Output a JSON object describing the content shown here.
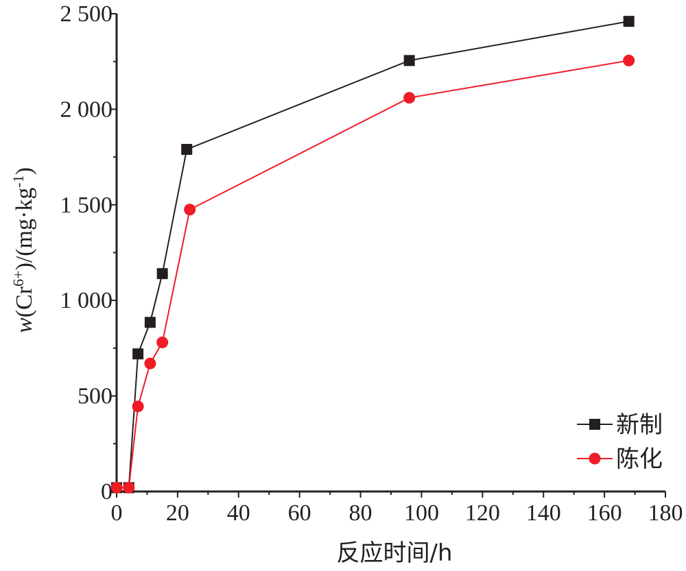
{
  "chart_data": {
    "type": "line",
    "xlabel": "反应时间/h",
    "ylabel": {
      "italic_var": "w",
      "open": "(Cr",
      "superscript": "6+",
      "middle": ")/(mg·kg",
      "superscript2": "-1",
      "close": ")"
    },
    "xlim": [
      0,
      180
    ],
    "ylim": [
      0,
      2500
    ],
    "x_ticks": [
      0,
      20,
      40,
      60,
      80,
      100,
      120,
      140,
      160,
      180
    ],
    "x_tick_labels": [
      "0",
      "20",
      "40",
      "60",
      "80",
      "100",
      "120",
      "140",
      "160",
      "180"
    ],
    "y_ticks": [
      0,
      500,
      1000,
      1500,
      2000,
      2500
    ],
    "y_tick_labels": [
      "0",
      "500",
      "1 000",
      "1 500",
      "2 000",
      "2 500"
    ],
    "grid": false,
    "legend_position": "bottom-right",
    "series": [
      {
        "name": "新制",
        "color": "#231f20",
        "marker": "square",
        "x": [
          0,
          4,
          7,
          11,
          15,
          23,
          96,
          168
        ],
        "y": [
          20,
          20,
          720,
          885,
          1140,
          1790,
          2255,
          2460
        ]
      },
      {
        "name": "陈化",
        "color": "#ee1c25",
        "marker": "circle",
        "x": [
          0,
          4,
          7,
          11,
          15,
          24,
          96,
          168
        ],
        "y": [
          20,
          20,
          445,
          670,
          780,
          1475,
          2060,
          2255
        ]
      }
    ]
  }
}
